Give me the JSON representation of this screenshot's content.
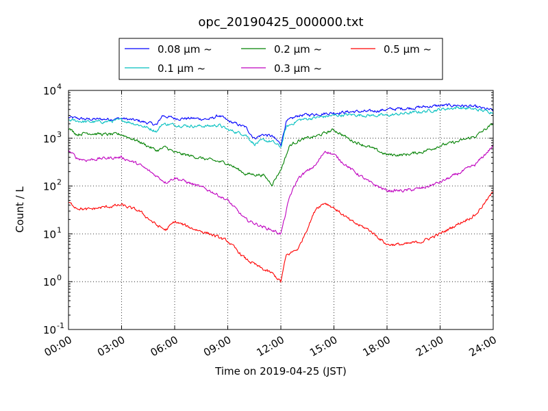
{
  "chart_data": {
    "type": "line",
    "title": "opc_20190425_000000.txt",
    "xlabel": "Time on 2019-04-25 (JST)",
    "ylabel": "Count / L",
    "x_unit": "hours",
    "xlim": [
      0,
      24
    ],
    "ylim": [
      0.1,
      10000
    ],
    "yscale": "log",
    "grid": true,
    "legend_position": "top-center",
    "x_ticks": [
      "00:00",
      "03:00",
      "06:00",
      "09:00",
      "12:00",
      "15:00",
      "18:00",
      "21:00",
      "24:00"
    ],
    "y_ticks": [
      {
        "base": "10",
        "exp": "-1"
      },
      {
        "base": "10",
        "exp": "0"
      },
      {
        "base": "10",
        "exp": "1"
      },
      {
        "base": "10",
        "exp": "2"
      },
      {
        "base": "10",
        "exp": "3"
      },
      {
        "base": "10",
        "exp": "4"
      }
    ],
    "series": [
      {
        "name": "0.08 μm ~",
        "color": "#0000ff",
        "x": [
          0,
          1,
          2,
          3,
          4,
          5,
          5.3,
          6,
          7,
          8,
          8.5,
          9,
          10,
          10.5,
          11,
          11.5,
          12,
          12.3,
          13,
          14,
          15,
          16,
          17,
          18,
          19,
          20,
          21,
          22,
          23,
          24
        ],
        "y": [
          2700,
          2500,
          2500,
          2600,
          2300,
          1900,
          3000,
          2600,
          2600,
          2500,
          3000,
          2300,
          1700,
          1000,
          1200,
          1100,
          750,
          2200,
          3000,
          3200,
          3400,
          3600,
          3600,
          4000,
          4200,
          4500,
          4800,
          4900,
          4500,
          3800
        ]
      },
      {
        "name": "0.1 μm ~",
        "color": "#00bfbf",
        "x": [
          0,
          1,
          2,
          3,
          4,
          5,
          5.3,
          6,
          7,
          8,
          8.5,
          9,
          10,
          10.5,
          11,
          11.5,
          12,
          12.3,
          13,
          14,
          15,
          16,
          17,
          18,
          19,
          20,
          21,
          22,
          23,
          24
        ],
        "y": [
          2400,
          2200,
          2200,
          2400,
          1900,
          1400,
          2000,
          1900,
          1800,
          1800,
          1900,
          1500,
          1200,
          750,
          900,
          850,
          650,
          1700,
          2400,
          2700,
          3000,
          3100,
          3000,
          3000,
          3300,
          3600,
          4000,
          4400,
          4000,
          3500
        ]
      },
      {
        "name": "0.2 μm ~",
        "color": "#008000",
        "x": [
          0,
          0.5,
          1,
          2,
          3,
          4,
          5,
          5.5,
          6,
          7,
          8,
          9,
          10,
          11,
          11.5,
          12,
          12.5,
          13,
          14,
          15,
          16,
          17,
          18,
          19,
          20,
          21,
          22,
          23,
          24
        ],
        "y": [
          1600,
          1200,
          1300,
          1200,
          1200,
          850,
          550,
          650,
          500,
          420,
          350,
          300,
          180,
          170,
          110,
          220,
          700,
          900,
          1100,
          1500,
          900,
          650,
          450,
          450,
          520,
          700,
          850,
          1100,
          2000
        ]
      },
      {
        "name": "0.3 μm ~",
        "color": "#bf00bf",
        "x": [
          0,
          0.5,
          1,
          2,
          3,
          4,
          5,
          5.5,
          6,
          7,
          8,
          9,
          10,
          11,
          11.5,
          12,
          12.5,
          13,
          14,
          14.5,
          15,
          16,
          17,
          18,
          19,
          20,
          21,
          22,
          23,
          24
        ],
        "y": [
          550,
          380,
          350,
          380,
          400,
          280,
          160,
          120,
          150,
          110,
          80,
          50,
          20,
          14,
          12,
          10,
          60,
          150,
          280,
          550,
          450,
          220,
          120,
          80,
          80,
          90,
          120,
          180,
          280,
          700
        ]
      },
      {
        "name": "0.5 μm ~",
        "color": "#ff0000",
        "x": [
          0,
          0.5,
          1,
          2,
          3,
          4,
          5,
          5.5,
          6,
          7,
          8,
          9,
          10,
          11,
          11.5,
          12,
          12.3,
          13,
          14,
          14.5,
          15,
          16,
          17,
          18,
          19,
          20,
          21,
          22,
          23,
          24
        ],
        "y": [
          45,
          35,
          32,
          36,
          40,
          30,
          15,
          12,
          18,
          13,
          10,
          7,
          3,
          1.8,
          1.5,
          1.0,
          3.5,
          5,
          35,
          45,
          35,
          18,
          12,
          6,
          6,
          7,
          10,
          16,
          25,
          75
        ]
      }
    ]
  }
}
